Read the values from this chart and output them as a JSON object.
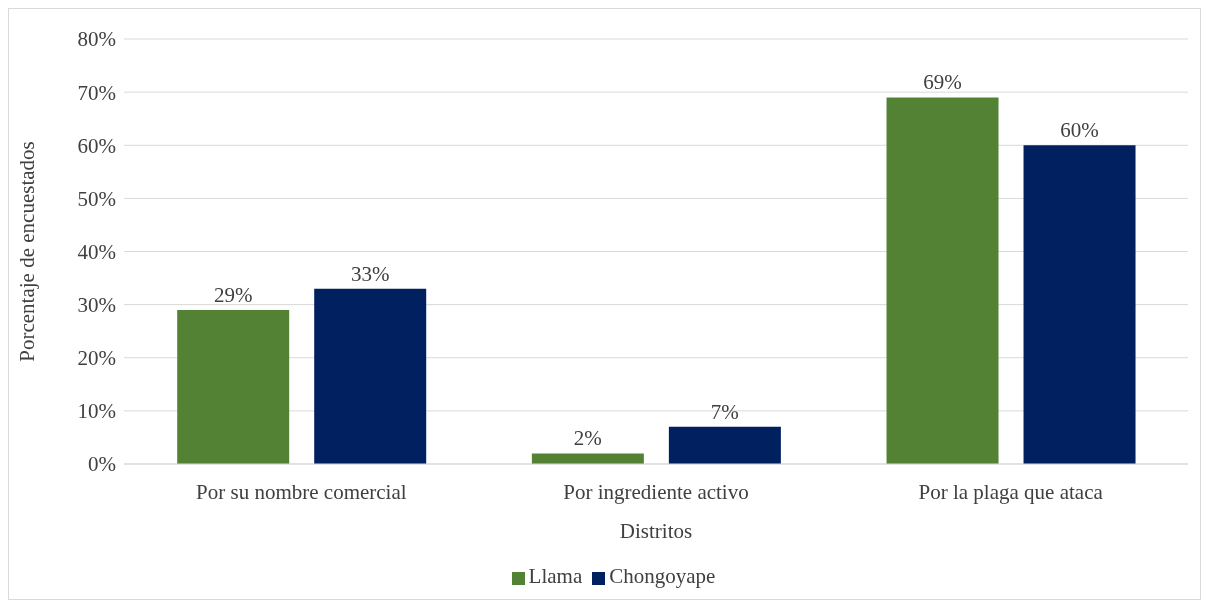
{
  "chart_data": {
    "type": "bar",
    "xlabel": "Distritos",
    "ylabel": "Porcentaje de encuestados",
    "categories": [
      "Por su nombre comercial",
      "Por ingrediente activo",
      "Por la plaga que ataca"
    ],
    "series": [
      {
        "name": "Llama",
        "color": "#548235",
        "values": [
          29,
          2,
          69
        ],
        "value_labels": [
          "29%",
          "2%",
          "69%"
        ]
      },
      {
        "name": "Chongoyape",
        "color": "#002060",
        "values": [
          33,
          7,
          60
        ],
        "value_labels": [
          "33%",
          "7%",
          "60%"
        ]
      }
    ],
    "ylim": [
      0,
      80
    ],
    "yticks": [
      {
        "value": 0,
        "label": "0%"
      },
      {
        "value": 10,
        "label": "10%"
      },
      {
        "value": 20,
        "label": "20%"
      },
      {
        "value": 30,
        "label": "30%"
      },
      {
        "value": 40,
        "label": "40%"
      },
      {
        "value": 50,
        "label": "50%"
      },
      {
        "value": 60,
        "label": "60%"
      },
      {
        "value": 70,
        "label": "70%"
      },
      {
        "value": 80,
        "label": "80%"
      }
    ],
    "grid": "y",
    "legend": "bottom"
  }
}
